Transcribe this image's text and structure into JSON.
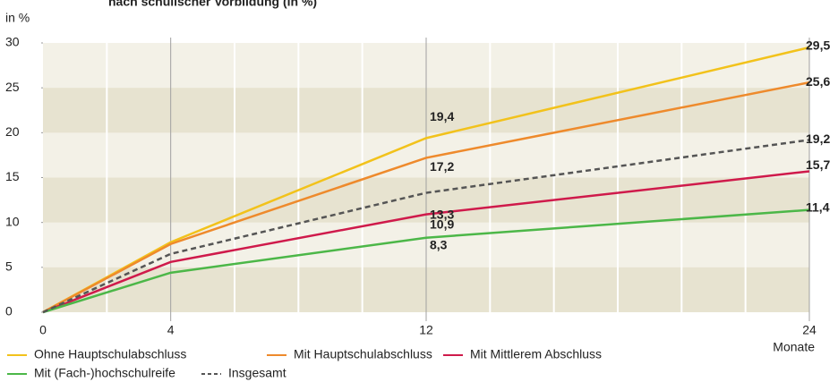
{
  "chart_data": {
    "type": "line",
    "title": "nach schulischer Vorbildung (in %)",
    "y_label": "in %",
    "x_label": "Monate",
    "x": [
      0,
      4,
      12,
      24
    ],
    "xlim": [
      0,
      24
    ],
    "xticks": [
      0,
      4,
      12,
      24
    ],
    "x_minor_ticks": [
      2,
      6,
      8,
      10,
      14,
      16,
      18,
      20,
      22
    ],
    "ylim": [
      0,
      30
    ],
    "yticks": [
      0,
      5,
      10,
      15,
      20,
      25,
      30
    ],
    "grid": true,
    "legend": "bottom",
    "series": [
      {
        "name": "Ohne Hauptschulabschluss",
        "color": "#f2c21b",
        "values": [
          0,
          7.8,
          19.4,
          29.5
        ],
        "value_labels": [
          null,
          null,
          "19,4",
          "29,5"
        ]
      },
      {
        "name": "Mit Hauptschulabschluss",
        "color": "#ee8a2c",
        "values": [
          0,
          7.6,
          17.2,
          25.6
        ],
        "value_labels": [
          null,
          null,
          "17,2",
          "25,6"
        ]
      },
      {
        "name": "Mit Mittlerem Abschluss",
        "color": "#cf1a4b",
        "values": [
          0,
          5.6,
          10.9,
          15.7
        ],
        "value_labels": [
          null,
          null,
          "10,9",
          "15,7"
        ]
      },
      {
        "name": "Mit (Fach-)hochschulreife",
        "color": "#4cb748",
        "values": [
          0,
          4.4,
          8.3,
          11.4
        ],
        "value_labels": [
          null,
          null,
          "8,3",
          "11,4"
        ]
      },
      {
        "name": "Insgesamt",
        "color": "#555555",
        "line_style": "dashed",
        "values": [
          0,
          6.5,
          13.3,
          19.2
        ],
        "value_labels": [
          null,
          null,
          "13,3",
          "19,2"
        ]
      }
    ]
  }
}
